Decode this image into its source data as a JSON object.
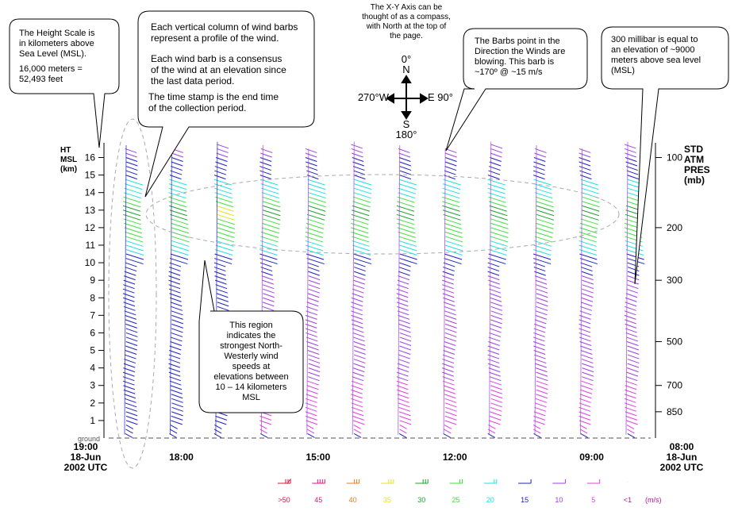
{
  "callouts": {
    "height_scale": {
      "line1": "The Height Scale is",
      "line2": "in kilometers above",
      "line3": "Sea Level (MSL).",
      "line4": "16,000 meters =",
      "line5": "52,493 feet"
    },
    "profile": {
      "p1": "Each vertical column of wind barbs",
      "p2": "represent a profile of the wind.",
      "p3": "Each wind barb is a consensus",
      "p4": "of the wind at an elevation since",
      "p5": "the last data period.",
      "p6": "The time stamp is the end time",
      "p7": "of the collection period."
    },
    "compass": {
      "l1": "The X-Y Axis can be",
      "l2": "thought of as a compass,",
      "l3": "with North at the top of",
      "l4": "the page.",
      "north_deg": "0°",
      "north": "N",
      "east": "E 90°",
      "west": "270°W",
      "south": "S",
      "south_deg": "180°"
    },
    "barbs": {
      "l1": "The Barbs point in the",
      "l2": "Direction the Winds are",
      "l3": "blowing. This barb is",
      "l4": "~170º @  ~15 m/s"
    },
    "millibar": {
      "l1": "300 millibar is equal to",
      "l2": "an elevation of ~9000",
      "l3": "meters above sea level",
      "l4": "(MSL)"
    },
    "region": {
      "l1": "This region",
      "l2": "indicates the",
      "l3": "strongest North-",
      "l4": "Westerly wind",
      "l5": "speeds at",
      "l6": "elevations between",
      "l7": "10 – 14 kilometers",
      "l8": "MSL"
    }
  },
  "chart_data": {
    "type": "wind-profiler-barbs",
    "left_axis": {
      "title_lines": [
        "HT",
        "MSL",
        "(km)"
      ],
      "ticks": [
        "1",
        "2",
        "3",
        "4",
        "5",
        "6",
        "7",
        "8",
        "9",
        "10",
        "11",
        "12",
        "13",
        "14",
        "15",
        "16"
      ],
      "range_km": [
        0,
        16
      ],
      "ground_label": "ground"
    },
    "right_axis": {
      "title_lines": [
        "STD",
        "ATM",
        "PRES",
        "(mb)"
      ],
      "ticks": [
        {
          "label": "100",
          "height_km": 16.0
        },
        {
          "label": "200",
          "height_km": 12.0
        },
        {
          "label": "300",
          "height_km": 9.0
        },
        {
          "label": "500",
          "height_km": 5.5
        },
        {
          "label": "700",
          "height_km": 3.0
        },
        {
          "label": "850",
          "height_km": 1.5
        }
      ]
    },
    "time_axis": {
      "left_label": [
        "19:00",
        "18-Jun",
        "2002 UTC"
      ],
      "right_label": [
        "08:00",
        "18-Jun",
        "2002 UTC"
      ],
      "ticks": [
        {
          "label": "18:00",
          "hour": 18
        },
        {
          "label": "15:00",
          "hour": 15
        },
        {
          "label": "12:00",
          "hour": 12
        },
        {
          "label": "09:00",
          "hour": 9
        }
      ],
      "start_hour": 19,
      "end_hour": 8
    },
    "profile_hours": [
      19,
      18,
      17,
      16,
      15,
      14,
      13,
      12,
      11,
      10,
      9,
      8
    ],
    "jet_region_km": [
      10,
      14
    ],
    "legend": {
      "unit": "(m/s)",
      "entries": [
        {
          "label": ">50",
          "color": "#e0103c"
        },
        {
          "label": "45",
          "color": "#d81a7c"
        },
        {
          "label": "40",
          "color": "#e08020"
        },
        {
          "label": "35",
          "color": "#e4e420"
        },
        {
          "label": "30",
          "color": "#20a030"
        },
        {
          "label": "25",
          "color": "#40e040"
        },
        {
          "label": "20",
          "color": "#20e0e0"
        },
        {
          "label": "15",
          "color": "#2020c0"
        },
        {
          "label": "10",
          "color": "#a040e0"
        },
        {
          "label": "5",
          "color": "#e040e0"
        },
        {
          "label": "<1",
          "color": "#a02090"
        }
      ]
    }
  }
}
